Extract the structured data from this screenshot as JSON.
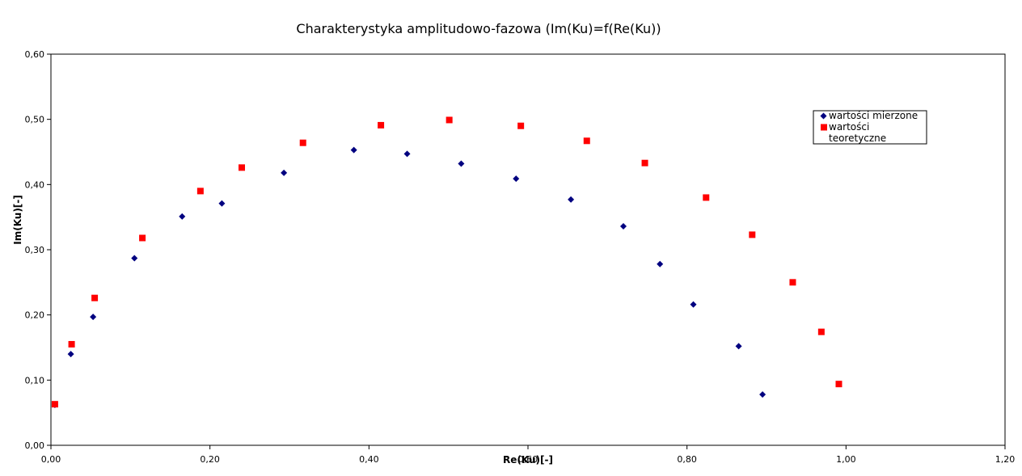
{
  "chart_data": {
    "type": "scatter",
    "title": "Charakterystyka amplitudowo-fazowa (Im(Ku)=f(Re(Ku))",
    "xlabel": "Re(Ku)[-]",
    "ylabel": "Im(Ku)[-]",
    "xlim": [
      0,
      1.2
    ],
    "ylim": [
      0,
      0.6
    ],
    "xticks": [
      0,
      0.2,
      0.4,
      0.6,
      0.8,
      1.0,
      1.2
    ],
    "yticks": [
      0,
      0.1,
      0.2,
      0.3,
      0.4,
      0.5,
      0.6
    ],
    "xtick_labels": [
      "0,00",
      "0,20",
      "0,40",
      "0,60",
      "0,80",
      "1,00",
      "1,20"
    ],
    "ytick_labels": [
      "0,00",
      "0,10",
      "0,20",
      "0,30",
      "0,40",
      "0,50",
      "0,60"
    ],
    "grid": false,
    "legend_position": "top-right",
    "series": [
      {
        "name": "wartości mierzone",
        "marker": "diamond",
        "color": "#000080",
        "points": [
          [
            0.005,
            0.062
          ],
          [
            0.025,
            0.14
          ],
          [
            0.053,
            0.197
          ],
          [
            0.105,
            0.287
          ],
          [
            0.165,
            0.351
          ],
          [
            0.215,
            0.371
          ],
          [
            0.293,
            0.418
          ],
          [
            0.381,
            0.453
          ],
          [
            0.448,
            0.447
          ],
          [
            0.516,
            0.432
          ],
          [
            0.585,
            0.409
          ],
          [
            0.654,
            0.377
          ],
          [
            0.72,
            0.336
          ],
          [
            0.766,
            0.278
          ],
          [
            0.808,
            0.216
          ],
          [
            0.865,
            0.152
          ],
          [
            0.895,
            0.078
          ]
        ]
      },
      {
        "name": "wartości teoretyczne",
        "legend_lines": [
          "wartości",
          "teoretyczne"
        ],
        "marker": "square",
        "color": "#ff0000",
        "points": [
          [
            0.005,
            0.063
          ],
          [
            0.026,
            0.155
          ],
          [
            0.055,
            0.226
          ],
          [
            0.115,
            0.318
          ],
          [
            0.188,
            0.39
          ],
          [
            0.24,
            0.426
          ],
          [
            0.317,
            0.464
          ],
          [
            0.415,
            0.491
          ],
          [
            0.501,
            0.499
          ],
          [
            0.591,
            0.49
          ],
          [
            0.674,
            0.467
          ],
          [
            0.747,
            0.433
          ],
          [
            0.824,
            0.38
          ],
          [
            0.882,
            0.323
          ],
          [
            0.933,
            0.25
          ],
          [
            0.969,
            0.174
          ],
          [
            0.991,
            0.094
          ]
        ]
      }
    ]
  }
}
